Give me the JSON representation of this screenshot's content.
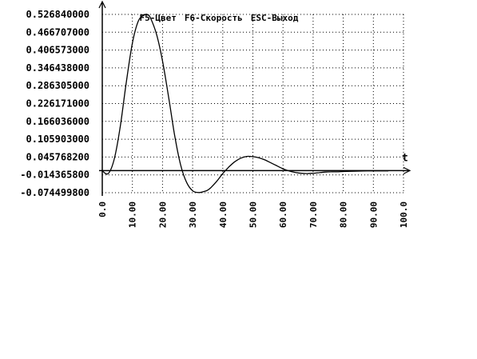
{
  "hotkeys": [
    {
      "label": "F5-Цвет"
    },
    {
      "label": "F6-Скорость"
    },
    {
      "label": "ESC-Выход"
    }
  ],
  "colors": {
    "background": "#ffffff",
    "curve": "#000000",
    "grid": "#000000"
  },
  "chart_data": {
    "type": "line",
    "title": "",
    "xlabel": "t",
    "ylabel": "",
    "grid": true,
    "xlim": [
      0,
      100
    ],
    "ylim": [
      -0.0745,
      0.52684
    ],
    "x_ticks": [
      "0.0",
      "10.00",
      "20.00",
      "30.00",
      "40.00",
      "50.00",
      "60.00",
      "70.00",
      "80.00",
      "90.00",
      "100.0"
    ],
    "y_ticks": [
      "0.526840000",
      "0.466707000",
      "0.406573000",
      "0.346438000",
      "0.286305000",
      "0.226171000",
      "0.166036000",
      "0.105903000",
      "0.045768200",
      "-0.014365800",
      "-0.074499800"
    ],
    "series": [
      {
        "x": [
          0,
          2,
          4,
          6,
          8,
          10,
          12,
          14,
          15,
          16,
          18,
          20,
          22,
          24,
          26,
          28,
          30,
          32,
          34,
          35,
          36,
          38,
          40,
          42,
          44,
          46,
          48,
          50,
          52,
          54,
          56,
          58,
          60,
          62,
          64,
          66,
          68,
          70,
          72,
          74,
          76,
          78,
          80,
          84,
          88,
          92,
          95
        ],
        "y": [
          -0.001,
          -0.01,
          0.04,
          0.15,
          0.3,
          0.43,
          0.505,
          0.525,
          0.526,
          0.515,
          0.46,
          0.37,
          0.25,
          0.12,
          0.02,
          -0.04,
          -0.068,
          -0.074,
          -0.07,
          -0.066,
          -0.058,
          -0.036,
          -0.01,
          0.012,
          0.03,
          0.042,
          0.048,
          0.047,
          0.043,
          0.036,
          0.026,
          0.016,
          0.006,
          -0.001,
          -0.006,
          -0.009,
          -0.01,
          -0.009,
          -0.007,
          -0.005,
          -0.004,
          -0.004,
          -0.003,
          -0.002,
          -0.001,
          -0.001,
          -0.001
        ]
      }
    ]
  }
}
